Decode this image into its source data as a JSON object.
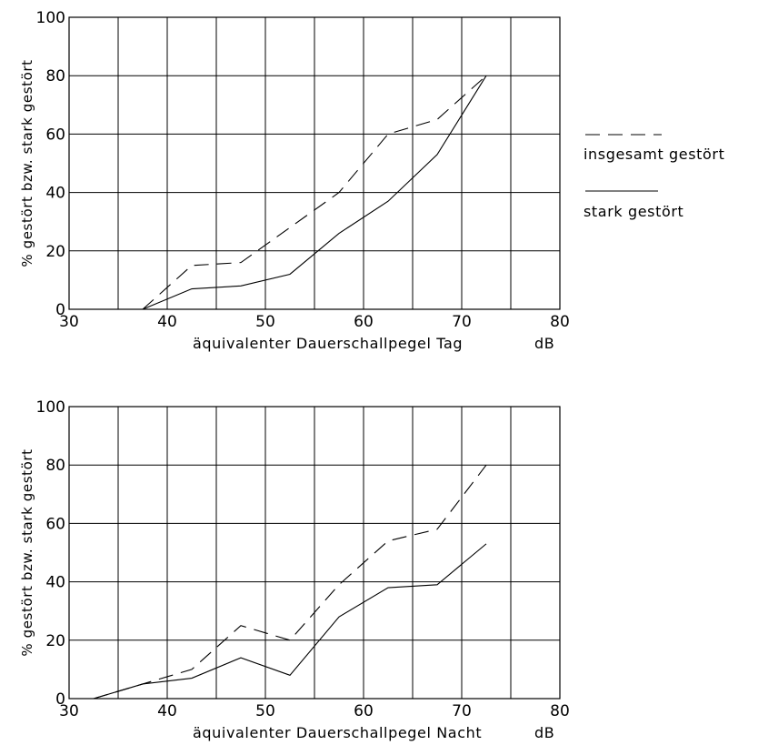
{
  "legend": {
    "entries": [
      {
        "label": "insgesamt gestört",
        "style": "dashed"
      },
      {
        "label": "stark gestört",
        "style": "solid"
      }
    ]
  },
  "chart_data": [
    {
      "type": "line",
      "xlabel": "äquivalenter Dauerschallpegel Tag",
      "xunit": "dB",
      "ylabel": "% gestört bzw. stark gestört",
      "xlim": [
        30,
        80
      ],
      "ylim": [
        0,
        100
      ],
      "xticks": [
        30,
        40,
        50,
        60,
        70,
        80
      ],
      "yticks": [
        0,
        20,
        40,
        60,
        80,
        100
      ],
      "xgrid": [
        35,
        40,
        45,
        50,
        55,
        60,
        65,
        70,
        75
      ],
      "ygrid": [
        20,
        40,
        60,
        80
      ],
      "grid": true,
      "legend_position": "right",
      "series": [
        {
          "name": "insgesamt gestört",
          "style": "dashed",
          "x": [
            37.5,
            42.5,
            47.5,
            52.5,
            57.5,
            62.5,
            67.5,
            72.5
          ],
          "y": [
            0,
            15,
            16,
            28,
            40,
            60,
            65,
            80
          ]
        },
        {
          "name": "stark gestört",
          "style": "solid",
          "x": [
            37.5,
            42.5,
            47.5,
            52.5,
            57.5,
            62.5,
            67.5,
            72.5
          ],
          "y": [
            0,
            7,
            8,
            12,
            26,
            37,
            53,
            80
          ]
        }
      ]
    },
    {
      "type": "line",
      "xlabel": "äquivalenter Dauerschallpegel Nacht",
      "xunit": "dB",
      "ylabel": "% gestört bzw. stark gestört",
      "xlim": [
        30,
        80
      ],
      "ylim": [
        0,
        100
      ],
      "xticks": [
        30,
        40,
        50,
        60,
        70,
        80
      ],
      "yticks": [
        0,
        20,
        40,
        60,
        80,
        100
      ],
      "xgrid": [
        35,
        40,
        45,
        50,
        55,
        60,
        65,
        70,
        75
      ],
      "ygrid": [
        20,
        40,
        60,
        80
      ],
      "grid": true,
      "series": [
        {
          "name": "insgesamt gestört",
          "style": "dashed",
          "x": [
            32.5,
            37.5,
            42.5,
            47.5,
            52.5,
            57.5,
            62.5,
            67.5,
            72.5
          ],
          "y": [
            0,
            5,
            10,
            25,
            20,
            39,
            54,
            58,
            80
          ]
        },
        {
          "name": "stark gestört",
          "style": "solid",
          "x": [
            32.5,
            37.5,
            42.5,
            47.5,
            52.5,
            57.5,
            62.5,
            67.5,
            72.5
          ],
          "y": [
            0,
            5,
            7,
            14,
            8,
            28,
            38,
            39,
            53
          ]
        }
      ]
    }
  ]
}
